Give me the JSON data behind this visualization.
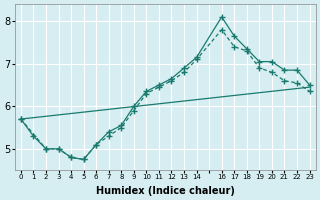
{
  "xlabel": "Humidex (Indice chaleur)",
  "ylabel": "",
  "bg_color": "#d6eef2",
  "grid_color": "#ffffff",
  "line_color": "#1a7a6e",
  "xlim": [
    -0.5,
    23.5
  ],
  "ylim": [
    4.5,
    8.4
  ],
  "yticks": [
    5,
    6,
    7,
    8
  ],
  "xtick_positions": [
    0,
    1,
    2,
    3,
    4,
    5,
    6,
    7,
    8,
    9,
    10,
    11,
    12,
    13,
    14,
    15,
    16,
    17,
    18,
    19,
    20,
    21,
    22,
    23
  ],
  "xtick_labels": [
    "0",
    "1",
    "2",
    "3",
    "4",
    "5",
    "6",
    "7",
    "8",
    "9",
    "10",
    "11",
    "12",
    "13",
    "14",
    "",
    "16",
    "17",
    "18",
    "19",
    "20",
    "21",
    "22",
    "23"
  ],
  "line1_x": [
    0,
    1,
    2,
    3,
    4,
    5,
    6,
    7,
    8,
    9,
    10,
    11,
    12,
    13,
    14,
    16,
    17,
    18,
    19,
    20,
    21,
    22,
    23
  ],
  "line1_y": [
    5.7,
    5.3,
    5.0,
    5.0,
    4.8,
    4.75,
    5.1,
    5.4,
    5.55,
    6.0,
    6.35,
    6.5,
    6.65,
    6.9,
    7.15,
    8.1,
    7.65,
    7.35,
    7.05,
    7.05,
    6.85,
    6.85,
    6.5
  ],
  "line2_x": [
    0,
    2,
    3,
    4,
    5,
    6,
    7,
    8,
    9,
    10,
    11,
    12,
    13,
    14,
    16,
    17,
    18,
    19,
    20,
    21,
    22,
    23
  ],
  "line2_y": [
    5.7,
    5.0,
    5.0,
    4.8,
    4.75,
    5.1,
    5.3,
    5.5,
    5.9,
    6.3,
    6.45,
    6.6,
    6.8,
    7.1,
    7.8,
    7.4,
    7.3,
    6.9,
    6.8,
    6.6,
    6.55,
    6.35
  ],
  "line3_x": [
    0,
    23
  ],
  "line3_y": [
    5.7,
    6.45
  ]
}
